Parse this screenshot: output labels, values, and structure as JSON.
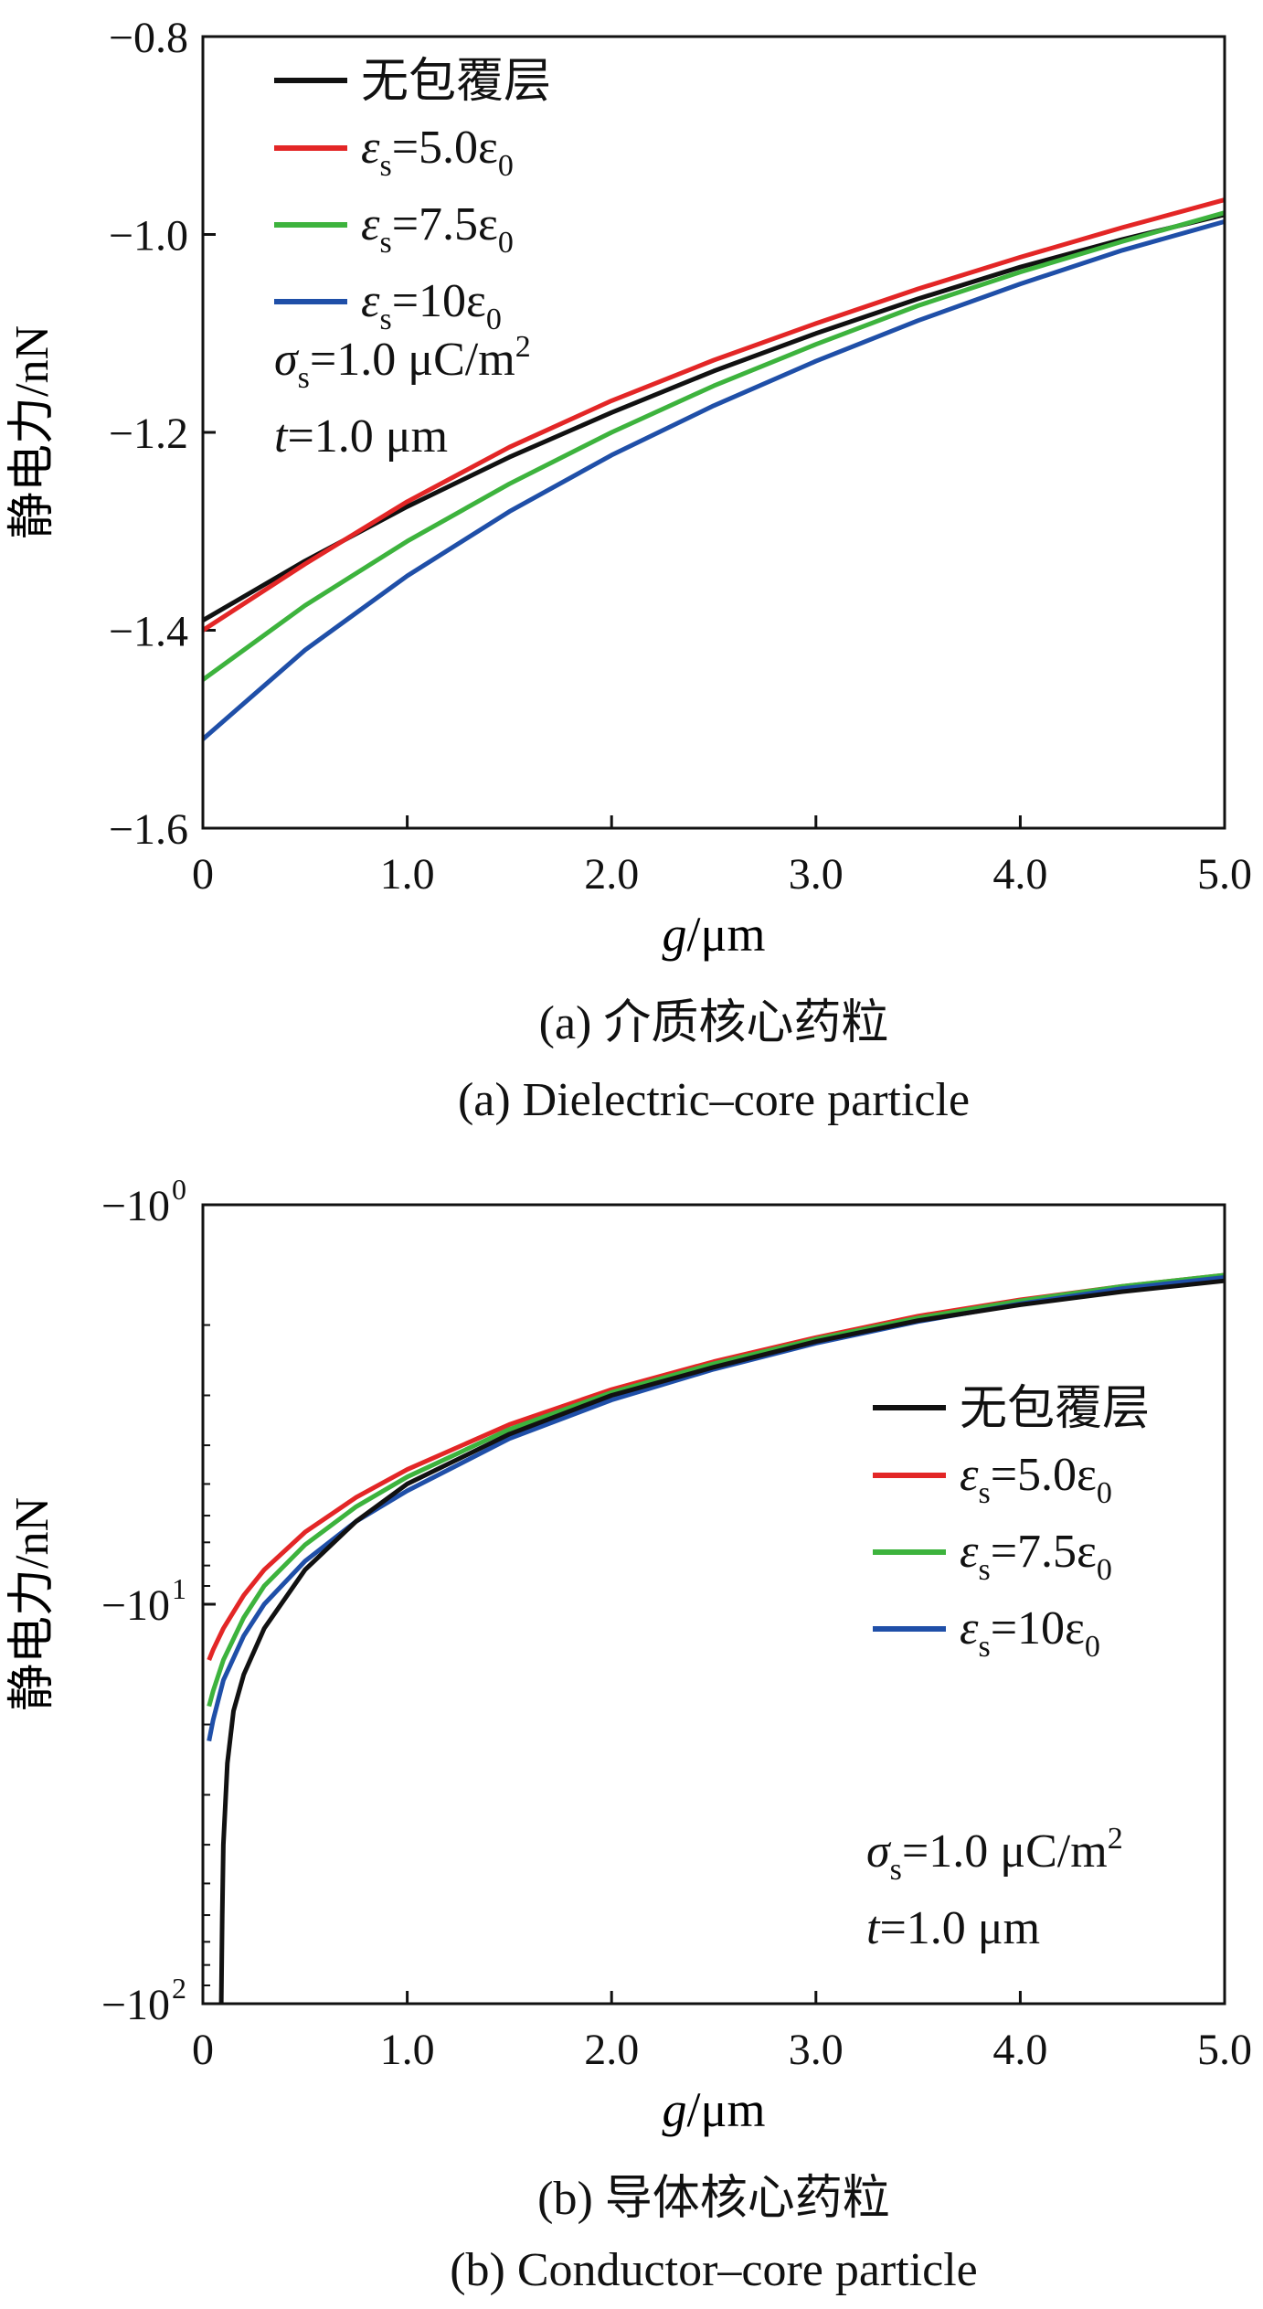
{
  "chart_data": [
    {
      "type": "line",
      "panel": "a",
      "xlabel_var": "g",
      "xlabel_unit": "/μm",
      "ylabel": "静电力/nN",
      "xlim": [
        0,
        5
      ],
      "ylim": [
        -1.6,
        -0.8
      ],
      "xticks": [
        0,
        1.0,
        2.0,
        3.0,
        4.0,
        5.0
      ],
      "xtick_labels": [
        "0",
        "1.0",
        "2.0",
        "3.0",
        "4.0",
        "5.0"
      ],
      "yticks": [
        -0.8,
        -1.0,
        -1.2,
        -1.4,
        -1.6
      ],
      "ytick_labels": [
        "−0.8",
        "−1.0",
        "−1.2",
        "−1.4",
        "−1.6"
      ],
      "x": [
        0,
        0.5,
        1.0,
        1.5,
        2.0,
        2.5,
        3.0,
        3.5,
        4.0,
        4.5,
        5.0
      ],
      "series": [
        {
          "name": "无包覆层",
          "color": "#111111",
          "values": [
            -1.39,
            -1.33,
            -1.275,
            -1.225,
            -1.18,
            -1.138,
            -1.1,
            -1.065,
            -1.033,
            -1.005,
            -0.98
          ]
        },
        {
          "name_sym": "ε",
          "name_sub": "s",
          "name_rest": "=5.0ε",
          "name_sub2": "0",
          "color": "#e32626",
          "values": [
            -1.4,
            -1.333,
            -1.27,
            -1.215,
            -1.168,
            -1.127,
            -1.09,
            -1.055,
            -1.023,
            -0.993,
            -0.965
          ]
        },
        {
          "name_sym": "ε",
          "name_sub": "s",
          "name_rest": "=7.5ε",
          "name_sub2": "0",
          "color": "#3db33d",
          "values": [
            -1.45,
            -1.375,
            -1.31,
            -1.252,
            -1.2,
            -1.153,
            -1.111,
            -1.072,
            -1.038,
            -1.007,
            -0.978
          ]
        },
        {
          "name_sym": "ε",
          "name_sub": "s",
          "name_rest": "=10ε",
          "name_sub2": "0",
          "color": "#1f4fa8",
          "values": [
            -1.51,
            -1.42,
            -1.345,
            -1.28,
            -1.223,
            -1.173,
            -1.128,
            -1.087,
            -1.05,
            -1.016,
            -0.987
          ]
        }
      ],
      "annotation": {
        "sigma_sym": "σ",
        "sigma_sub": "s",
        "sigma_rest": "=1.0 μC/m",
        "sigma_sup": "2",
        "t_sym": "t",
        "t_rest": "=1.0 μm"
      },
      "caption_cn": "(a) 介质核心药粒",
      "caption_en": "(a) Dielectric–core particle",
      "legend_position": "top-left"
    },
    {
      "type": "line",
      "panel": "b",
      "yscale": "symlog-negative",
      "xlabel_var": "g",
      "xlabel_unit": "/μm",
      "ylabel": "静电力/nN",
      "xlim": [
        0,
        5
      ],
      "ylim": [
        -100,
        -1
      ],
      "xticks": [
        0,
        1.0,
        2.0,
        3.0,
        4.0,
        5.0
      ],
      "xtick_labels": [
        "0",
        "1.0",
        "2.0",
        "3.0",
        "4.0",
        "5.0"
      ],
      "yticks": [
        {
          "base": "−10",
          "exp": "0",
          "value": -1
        },
        {
          "base": "−10",
          "exp": "1",
          "value": -10
        },
        {
          "base": "−10",
          "exp": "2",
          "value": -100
        }
      ],
      "x": [
        0.03,
        0.05,
        0.1,
        0.2,
        0.3,
        0.5,
        0.75,
        1.0,
        1.5,
        2.0,
        2.5,
        3.0,
        3.5,
        4.0,
        4.5,
        5.0
      ],
      "series": [
        {
          "name": "无包覆层",
          "color": "#111111",
          "x": [
            0.09,
            0.095,
            0.1,
            0.12,
            0.15,
            0.2,
            0.3,
            0.5,
            0.75,
            1.0,
            1.5,
            2.0,
            2.5,
            3.0,
            3.5,
            4.0,
            4.5,
            5.0
          ],
          "values": [
            -100,
            -60,
            -40,
            -25,
            -18.5,
            -15,
            -11.5,
            -8.2,
            -6.2,
            -5.0,
            -3.75,
            -3.0,
            -2.55,
            -2.2,
            -1.95,
            -1.78,
            -1.65,
            -1.55
          ]
        },
        {
          "name_sym": "ε",
          "name_sub": "s",
          "name_rest": "=5.0ε",
          "name_sub2": "0",
          "color": "#e32626",
          "values": [
            -13.8,
            -13.0,
            -11.5,
            -9.5,
            -8.2,
            -6.6,
            -5.4,
            -4.6,
            -3.55,
            -2.9,
            -2.47,
            -2.15,
            -1.9,
            -1.73,
            -1.6,
            -1.5
          ]
        },
        {
          "name_sym": "ε",
          "name_sub": "s",
          "name_rest": "=7.5ε",
          "name_sub2": "0",
          "color": "#3db33d",
          "values": [
            -18,
            -16.5,
            -13.8,
            -10.8,
            -9.0,
            -7.1,
            -5.7,
            -4.8,
            -3.65,
            -2.95,
            -2.5,
            -2.17,
            -1.92,
            -1.74,
            -1.6,
            -1.5
          ]
        },
        {
          "name_sym": "ε",
          "name_sub": "s",
          "name_rest": "=10ε",
          "name_sub2": "0",
          "color": "#1f4fa8",
          "values": [
            -22,
            -19.5,
            -15.5,
            -12.0,
            -10.0,
            -7.8,
            -6.2,
            -5.2,
            -3.85,
            -3.08,
            -2.58,
            -2.22,
            -1.96,
            -1.77,
            -1.62,
            -1.52
          ]
        }
      ],
      "annotation": {
        "sigma_sym": "σ",
        "sigma_sub": "s",
        "sigma_rest": "=1.0 μC/m",
        "sigma_sup": "2",
        "t_sym": "t",
        "t_rest": "=1.0 μm"
      },
      "caption_cn": "(b) 导体核心药粒",
      "caption_en": "(b) Conductor–core particle",
      "legend_position": "center-right"
    }
  ]
}
